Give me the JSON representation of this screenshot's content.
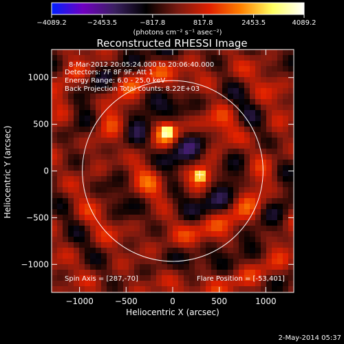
{
  "chart_data": {
    "type": "heatmap",
    "title": "Reconstructed RHESSI Image",
    "xlabel": "Heliocentric X (arcsec)",
    "ylabel": "Heliocentric Y (arcsec)",
    "xlim": [
      -1300,
      1300
    ],
    "ylim": [
      -1300,
      1300
    ],
    "x_ticks": [
      -1000,
      -500,
      0,
      500,
      1000
    ],
    "y_ticks": [
      1000,
      500,
      0,
      -500,
      -1000
    ],
    "x_tick_labels": [
      "−1000",
      "−500",
      "0",
      "500",
      "1000"
    ],
    "y_tick_labels": [
      "1000",
      "500",
      "0",
      "−500",
      "−1000"
    ],
    "colorbar": {
      "min": -4089.2,
      "max": 4089.2,
      "ticks": [
        -4089.2,
        -2453.5,
        -817.8,
        817.8,
        2453.5,
        4089.2
      ],
      "tick_labels": [
        "−4089.2",
        "−2453.5",
        "−817.8",
        "817.8",
        "2453.5",
        "4089.2"
      ],
      "unit_label": "(photons cm⁻² s⁻¹ asec⁻²)",
      "colors": [
        "#0020ff",
        "#7000c0",
        "#3a2060",
        "#000000",
        "#7a1a10",
        "#e02000",
        "#ff8000",
        "#ffff60",
        "#ffffff"
      ]
    },
    "annotations": {
      "time": "8-Mar-2012 20:05:24.000 to 20:06:40.000",
      "detectors": "Detectors: 7F 8F 9F, Att 1",
      "energy": "Energy Range: 6.0 - 25.0 keV",
      "method": "Back Projection    Total counts: 8.22E+03",
      "spin_axis": "Spin Axis = [287,-70]",
      "flare_position": "Flare Position = [-53,401]"
    },
    "solar_limb": {
      "center": [
        0,
        0
      ],
      "radius": 970
    },
    "bright_sources": [
      {
        "x": -60,
        "y": 420,
        "peak": 4089.2
      },
      {
        "x": 300,
        "y": -50,
        "peak": 4089.2
      }
    ],
    "marker": {
      "x": 290,
      "y": -40,
      "symbol": "+"
    }
  },
  "footer": {
    "date": "2-May-2014 05:37"
  }
}
